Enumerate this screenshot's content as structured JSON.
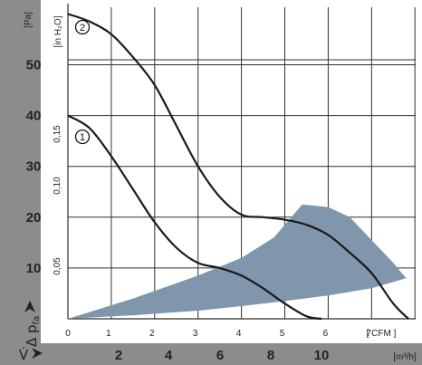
{
  "colors": {
    "band": "#8c8c8c",
    "grid": "#2f2f2f",
    "curve": "#1a1a1a",
    "region": "#7f96ac"
  },
  "chart_data": {
    "type": "line",
    "x": {
      "unit": "[ CFM ]",
      "ticks": [
        "0",
        "1",
        "2",
        "3",
        "4",
        "5",
        "6",
        "7"
      ],
      "range": [
        0,
        8
      ]
    },
    "x2": {
      "unit": "[m³/h]",
      "symbol": "V̇",
      "ticks": [
        "2",
        "4",
        "6",
        "8",
        "10"
      ]
    },
    "y": {
      "unit": "[Pa]",
      "ticks": [
        "10",
        "20",
        "30",
        "40",
        "50"
      ],
      "range": [
        0,
        60
      ],
      "label_symbol": "Δ p",
      "label_sub": "fa"
    },
    "y2": {
      "unit": "[in H₂O]",
      "ticks": [
        "0,05",
        "0,10",
        "0,15"
      ]
    },
    "grid": true,
    "series": [
      {
        "name": "1",
        "x": [
          0,
          0.5,
          1.0,
          1.5,
          2.0,
          2.5,
          3.0,
          3.5,
          4.0,
          4.5,
          5.0,
          5.5,
          5.85
        ],
        "y": [
          40,
          37.5,
          32,
          25.5,
          19,
          14,
          11,
          10,
          8.5,
          6,
          3,
          0.5,
          0
        ]
      },
      {
        "name": "2",
        "x": [
          0,
          0.5,
          1.0,
          1.5,
          2.0,
          2.5,
          3.0,
          3.5,
          4.0,
          4.5,
          5.0,
          5.5,
          6.0,
          6.5,
          7.0,
          7.5,
          7.85
        ],
        "y": [
          60,
          58.5,
          56,
          51.5,
          46,
          38,
          30,
          24,
          20.5,
          20,
          19.5,
          18.5,
          16.5,
          13,
          9,
          3,
          0
        ]
      }
    ],
    "region": {
      "upper": [
        [
          0,
          0
        ],
        [
          1.5,
          4
        ],
        [
          3,
          8.5
        ],
        [
          4,
          12
        ],
        [
          4.75,
          16
        ],
        [
          5.1,
          19.5
        ],
        [
          5.4,
          22.5
        ],
        [
          6,
          22
        ],
        [
          6.5,
          20
        ],
        [
          7,
          15.5
        ],
        [
          7.5,
          11
        ],
        [
          7.8,
          8
        ]
      ],
      "lower": [
        [
          7.8,
          8
        ],
        [
          7,
          6
        ],
        [
          6,
          4.6
        ],
        [
          5,
          3.5
        ],
        [
          4,
          2.5
        ],
        [
          3,
          1.6
        ],
        [
          1.5,
          0.7
        ],
        [
          0,
          0
        ]
      ]
    }
  }
}
